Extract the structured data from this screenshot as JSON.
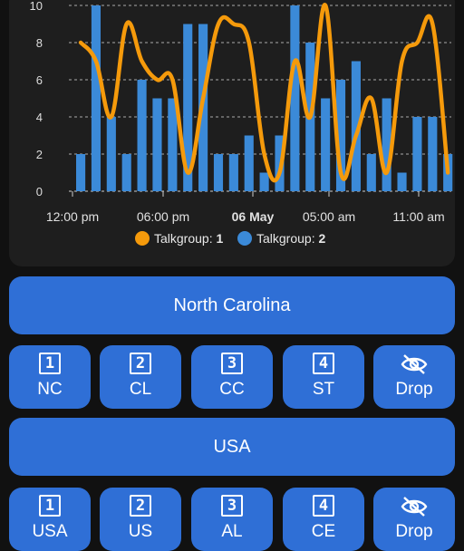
{
  "chart_data": {
    "type": "bar",
    "x_ticks": [
      "12:00 pm",
      "06:00 pm",
      "06 May",
      "05:00 am",
      "11:00 am"
    ],
    "bold_tick": "06 May",
    "ylim": [
      0,
      10
    ],
    "y_ticks": [
      0,
      2,
      4,
      6,
      8,
      10
    ],
    "grid": true,
    "legend_position": "bottom",
    "series": [
      {
        "name": "Talkgroup: 1",
        "legend_prefix": "Talkgroup:",
        "legend_value": "1",
        "type": "line",
        "color": "#f59a0b",
        "values": [
          8,
          7,
          4,
          9,
          7,
          6,
          6,
          1,
          5,
          9,
          9,
          8,
          2,
          1,
          7,
          4,
          10,
          1,
          3,
          5,
          1,
          7,
          8,
          9,
          1
        ]
      },
      {
        "name": "Talkgroup: 2",
        "legend_prefix": "Talkgroup:",
        "legend_value": "2",
        "type": "bar",
        "color": "#3b8ad8",
        "values": [
          2,
          10,
          4,
          2,
          6,
          5,
          5,
          9,
          9,
          2,
          2,
          3,
          1,
          3,
          10,
          8,
          5,
          6,
          7,
          2,
          5,
          1,
          4,
          4,
          2
        ]
      }
    ]
  },
  "region_group": {
    "label": "North Carolina",
    "buttons": [
      {
        "icon_number": "1",
        "label": "NC"
      },
      {
        "icon_number": "2",
        "label": "CL"
      },
      {
        "icon_number": "3",
        "label": "CC"
      },
      {
        "icon_number": "4",
        "label": "ST"
      },
      {
        "icon": "eye-off-icon",
        "label": "Drop"
      }
    ]
  },
  "country_group": {
    "label": "USA",
    "buttons": [
      {
        "icon_number": "1",
        "label": "USA"
      },
      {
        "icon_number": "2",
        "label": "US"
      },
      {
        "icon_number": "3",
        "label": "AL"
      },
      {
        "icon_number": "4",
        "label": "CE"
      },
      {
        "icon": "eye-off-icon",
        "label": "Drop"
      }
    ]
  },
  "colors": {
    "button": "#2f6fd6",
    "card": "#1e1e1e",
    "background": "#111111"
  }
}
